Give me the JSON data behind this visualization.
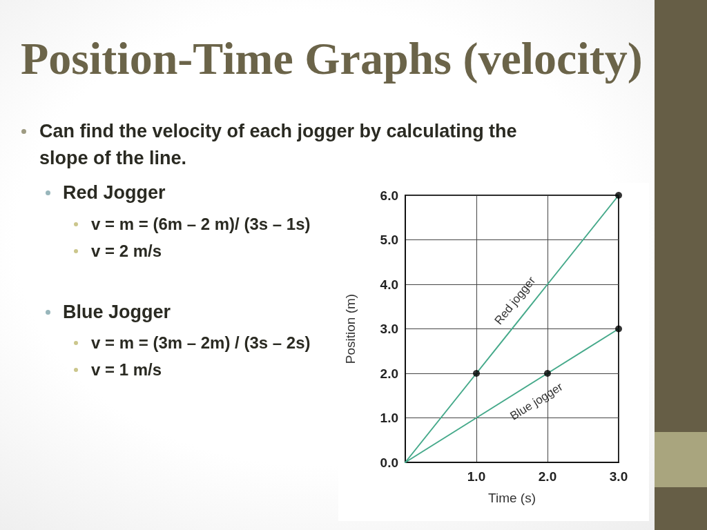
{
  "chart_data": {
    "type": "line",
    "title": "Position-Time Graphs (velocity)",
    "annotations": [
      "Can find the velocity of each jogger by calculating the slope of the line.",
      "Red Jogger",
      "v = m = (6m – 2 m)/ (3s – 1s)",
      "v = 2 m/s",
      "Blue Jogger",
      "v = m = (3m – 2m) / (3s – 2s)",
      "v = 1 m/s"
    ],
    "xlabel": "Time (s)",
    "ylabel": "Position (m)",
    "xlim": [
      0,
      3
    ],
    "xticks": [
      {
        "value": 1,
        "label": "1.0"
      },
      {
        "value": 2,
        "label": "2.0"
      },
      {
        "value": 3,
        "label": "3.0"
      }
    ],
    "ylim": [
      0,
      6
    ],
    "yticks": [
      {
        "value": 0,
        "label": "0.0"
      },
      {
        "value": 1,
        "label": "1.0"
      },
      {
        "value": 2,
        "label": "2.0"
      },
      {
        "value": 3,
        "label": "3.0"
      },
      {
        "value": 4,
        "label": "4.0"
      },
      {
        "value": 5,
        "label": "5.0"
      },
      {
        "value": 6,
        "label": "6.0"
      }
    ],
    "grid": true,
    "marker": "none",
    "line_style": "solid",
    "series": [
      {
        "name": "Red jogger",
        "color": "#45a98a",
        "x": [
          0,
          1,
          2,
          3
        ],
        "values": [
          0,
          2,
          4,
          6
        ]
      },
      {
        "name": "Blue jogger",
        "color": "#45a98a",
        "x": [
          0,
          1,
          2,
          3
        ],
        "values": [
          0,
          1,
          2,
          3
        ]
      },
      {
        "type": "scatter",
        "marker": "circle",
        "color": "#000000",
        "x": [
          1,
          3,
          2,
          3
        ],
        "values": [
          2,
          6,
          2,
          3
        ]
      }
    ]
  }
}
